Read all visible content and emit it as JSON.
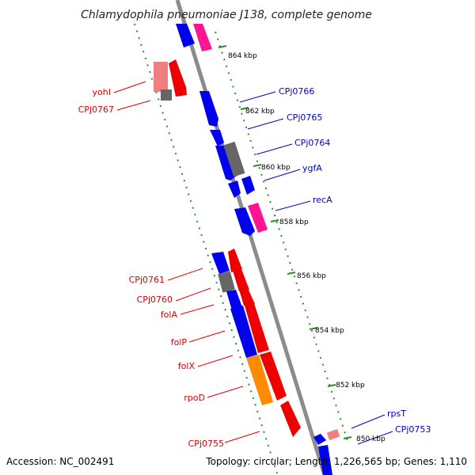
{
  "title": "Chlamydophila pneumoniae J138, complete genome",
  "footer": {
    "accession": "Accession: NC_002491",
    "summary": "Topology: circular; Length: 1,226,565 bp; Genes: 1,110"
  },
  "colors": {
    "forward_label": "#0000cc",
    "reverse_label": "#dd0000",
    "backbone": "#8c8c8c",
    "dotted_track": "#2e8b2e",
    "gene_blue": "#0000ee",
    "gene_red": "#ee0000",
    "gene_magenta": "#ff1493",
    "gene_pink": "#f08080",
    "gene_gray": "#666666",
    "gene_orange": "#ff8c00"
  },
  "ticks": [
    "864 kbp",
    "862 kbp",
    "860 kbp",
    "858 kbp",
    "856 kbp",
    "854 kbp",
    "852 kbp",
    "850 kbp"
  ],
  "labels": {
    "forward": [
      "CPj0766",
      "CPj0765",
      "CPj0764",
      "ygfA",
      "recA",
      "rpsT",
      "CPj0753"
    ],
    "reverse": [
      "yohI",
      "CPj0767",
      "CPj0761",
      "CPj0760",
      "folA",
      "folP",
      "folX",
      "rpoD",
      "CPj0755"
    ]
  }
}
